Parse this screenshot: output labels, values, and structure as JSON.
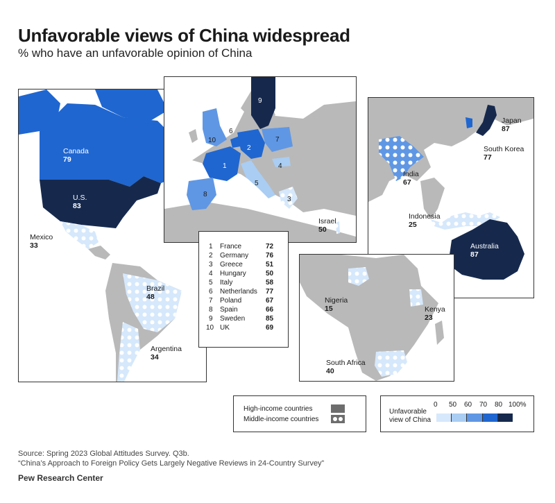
{
  "header": {
    "title": "Unfavorable views of China widespread",
    "subtitle": "% who have an unfavorable opinion of China"
  },
  "colors": {
    "scale_0_50": "#d6e8fb",
    "scale_50_60": "#a9cdf3",
    "scale_60_70": "#5f97e4",
    "scale_70_80": "#1f66d0",
    "scale_80_100": "#16294d",
    "land_gray": "#b9b9b9",
    "high_income": "#6d6d6d"
  },
  "americas": {
    "canada": {
      "name": "Canada",
      "value": "79"
    },
    "us": {
      "name": "U.S.",
      "value": "83"
    },
    "mexico": {
      "name": "Mexico",
      "value": "33"
    },
    "brazil": {
      "name": "Brazil",
      "value": "48"
    },
    "argentina": {
      "name": "Argentina",
      "value": "34"
    }
  },
  "europe": {
    "israel": {
      "name": "Israel",
      "value": "50"
    },
    "map_numbers": [
      "1",
      "2",
      "3",
      "4",
      "5",
      "6",
      "7",
      "8",
      "9",
      "10"
    ],
    "countries": [
      {
        "idx": "1",
        "name": "France",
        "value": "72"
      },
      {
        "idx": "2",
        "name": "Germany",
        "value": "76"
      },
      {
        "idx": "3",
        "name": "Greece",
        "value": "51"
      },
      {
        "idx": "4",
        "name": "Hungary",
        "value": "50"
      },
      {
        "idx": "5",
        "name": "Italy",
        "value": "58"
      },
      {
        "idx": "6",
        "name": "Netherlands",
        "value": "77"
      },
      {
        "idx": "7",
        "name": "Poland",
        "value": "67"
      },
      {
        "idx": "8",
        "name": "Spain",
        "value": "66"
      },
      {
        "idx": "9",
        "name": "Sweden",
        "value": "85"
      },
      {
        "idx": "10",
        "name": "UK",
        "value": "69"
      }
    ]
  },
  "asia": {
    "japan": {
      "name": "Japan",
      "value": "87"
    },
    "south_korea": {
      "name": "South Korea",
      "value": "77"
    },
    "india": {
      "name": "India",
      "value": "67"
    },
    "indonesia": {
      "name": "Indonesia",
      "value": "25"
    },
    "australia": {
      "name": "Australia",
      "value": "87"
    }
  },
  "africa": {
    "nigeria": {
      "name": "Nigeria",
      "value": "15"
    },
    "kenya": {
      "name": "Kenya",
      "value": "23"
    },
    "south_africa": {
      "name": "South Africa",
      "value": "40"
    }
  },
  "legend_income": {
    "high": "High-income countries",
    "middle": "Middle-income countries"
  },
  "legend_scale": {
    "label_line1": "Unfavorable",
    "label_line2": "view of China",
    "ticks": [
      "0",
      "50",
      "60",
      "70",
      "80",
      "100%"
    ]
  },
  "footer": {
    "source_line1": "Source: Spring 2023 Global Attitudes Survey. Q3b.",
    "source_line2": "“China’s Approach to Foreign Policy Gets Largely Negative Reviews in 24-Country Survey”",
    "brand": "Pew Research Center"
  }
}
